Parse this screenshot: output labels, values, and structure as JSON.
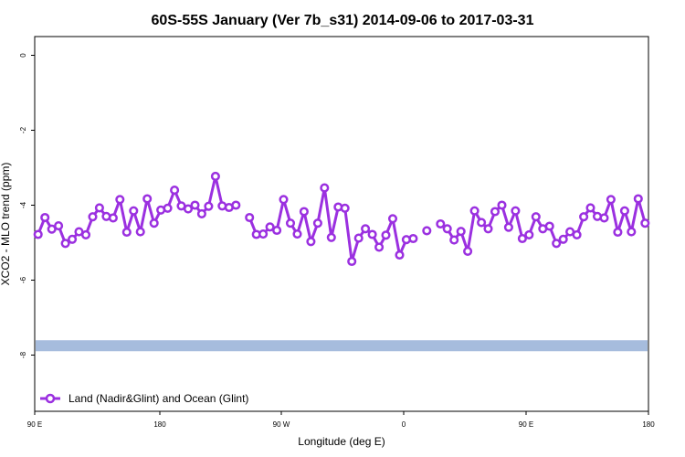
{
  "chart_data": {
    "type": "line",
    "title": "60S-55S January (Ver 7b_s31)   2014-09-06 to 2017-03-31",
    "xlabel": "Longitude (deg E)",
    "ylabel": "XCO2 - MLO trend (ppm)",
    "xlim": [
      90,
      450
    ],
    "ylim": [
      -9.5,
      0.5
    ],
    "x_ticks": [
      {
        "value": 90,
        "label": "90 E"
      },
      {
        "value": 180,
        "label": "180"
      },
      {
        "value": 270,
        "label": "90 W"
      },
      {
        "value": 360,
        "label": "0"
      },
      {
        "value": 450,
        "label": "90 E"
      },
      {
        "value": 540,
        "label": "180"
      }
    ],
    "y_ticks": [
      {
        "value": 0,
        "label": "0"
      },
      {
        "value": -2,
        "label": "-2"
      },
      {
        "value": -4,
        "label": "-4"
      },
      {
        "value": -6,
        "label": "-6"
      },
      {
        "value": -8,
        "label": "-8"
      }
    ],
    "grid": false,
    "legend_position": "bottom-left",
    "band": {
      "y": -7.75,
      "color": "#a6bcdd"
    },
    "series": [
      {
        "name": "Land (Nadir&Glint) and Ocean (Glint)",
        "color": "#9b30e0",
        "segments": [
          [
            [
              92,
              -4.78
            ],
            [
              96,
              -4.33
            ],
            [
              100,
              -4.64
            ],
            [
              104,
              -4.55
            ],
            [
              108,
              -5.02
            ],
            [
              112,
              -4.91
            ],
            [
              116,
              -4.71
            ],
            [
              120,
              -4.79
            ],
            [
              124,
              -4.31
            ],
            [
              128,
              -4.07
            ],
            [
              132,
              -4.3
            ],
            [
              136,
              -4.34
            ],
            [
              140,
              -3.85
            ],
            [
              144,
              -4.72
            ],
            [
              148,
              -4.15
            ],
            [
              152,
              -4.71
            ],
            [
              156,
              -3.83
            ],
            [
              160,
              -4.48
            ],
            [
              164,
              -4.13
            ],
            [
              168,
              -4.08
            ],
            [
              172,
              -3.6
            ],
            [
              176,
              -4.02
            ],
            [
              180,
              -4.1
            ],
            [
              184,
              -4.0
            ],
            [
              188,
              -4.23
            ],
            [
              192,
              -4.03
            ],
            [
              196,
              -3.23
            ],
            [
              200,
              -4.02
            ],
            [
              204,
              -4.06
            ],
            [
              208,
              -4.0
            ]
          ],
          [
            [
              216,
              -4.33
            ],
            [
              220,
              -4.78
            ],
            [
              224,
              -4.77
            ],
            [
              228,
              -4.58
            ],
            [
              232,
              -4.67
            ],
            [
              236,
              -3.85
            ],
            [
              240,
              -4.48
            ],
            [
              244,
              -4.77
            ],
            [
              248,
              -4.17
            ],
            [
              252,
              -4.97
            ],
            [
              256,
              -4.48
            ],
            [
              260,
              -3.54
            ],
            [
              264,
              -4.86
            ],
            [
              268,
              -4.05
            ],
            [
              272,
              -4.08
            ],
            [
              276,
              -5.5
            ],
            [
              280,
              -4.88
            ],
            [
              284,
              -4.63
            ],
            [
              288,
              -4.78
            ],
            [
              292,
              -5.12
            ],
            [
              296,
              -4.8
            ],
            [
              300,
              -4.36
            ],
            [
              304,
              -5.33
            ],
            [
              308,
              -4.92
            ],
            [
              312,
              -4.89
            ]
          ],
          [
            [
              320,
              -4.68
            ]
          ],
          [
            [
              328,
              -4.5
            ],
            [
              332,
              -4.63
            ],
            [
              336,
              -4.93
            ],
            [
              340,
              -4.7
            ],
            [
              344,
              -5.23
            ],
            [
              348,
              -4.15
            ],
            [
              352,
              -4.46
            ],
            [
              356,
              -4.63
            ],
            [
              360,
              -4.17
            ],
            [
              364,
              -4.0
            ],
            [
              368,
              -4.59
            ],
            [
              372,
              -4.15
            ],
            [
              376,
              -4.89
            ],
            [
              380,
              -4.79
            ],
            [
              384,
              -4.31
            ],
            [
              388,
              -4.63
            ],
            [
              392,
              -4.56
            ],
            [
              396,
              -5.02
            ],
            [
              400,
              -4.91
            ],
            [
              404,
              -4.71
            ],
            [
              408,
              -4.79
            ],
            [
              412,
              -4.31
            ],
            [
              416,
              -4.07
            ],
            [
              420,
              -4.3
            ],
            [
              424,
              -4.34
            ],
            [
              428,
              -3.85
            ],
            [
              432,
              -4.72
            ],
            [
              436,
              -4.15
            ],
            [
              440,
              -4.71
            ],
            [
              444,
              -3.83
            ],
            [
              448,
              -4.48
            ]
          ]
        ]
      }
    ]
  }
}
